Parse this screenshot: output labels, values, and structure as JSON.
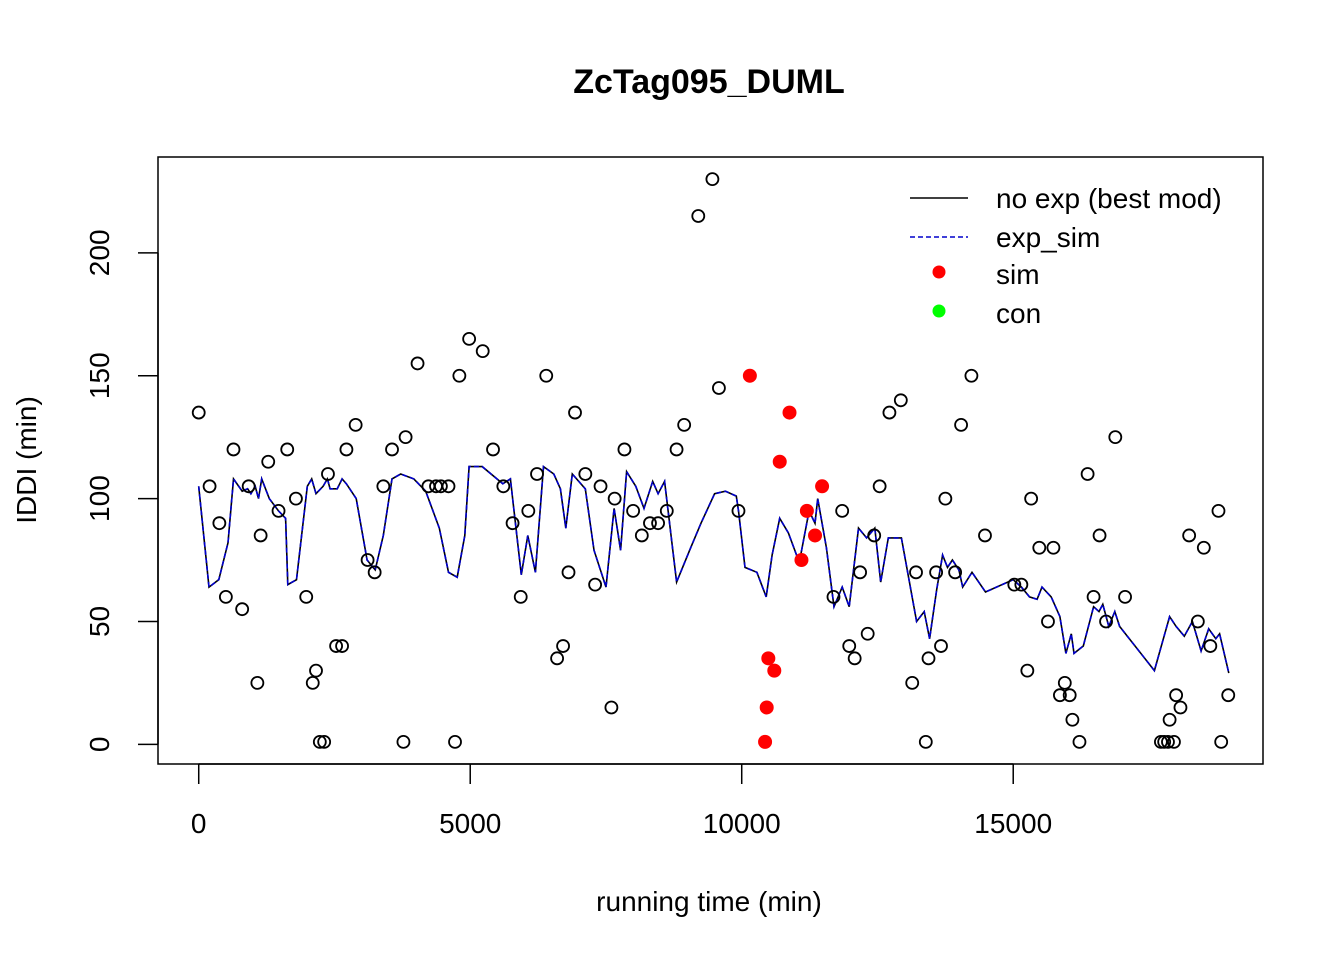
{
  "chart_data": {
    "type": "scatter",
    "title": "ZcTag095_DUML",
    "xlabel": "running time (min)",
    "ylabel": "IDDI (min)",
    "xlim": [
      -750,
      19600
    ],
    "ylim": [
      -8,
      239
    ],
    "x_ticks": [
      0,
      5000,
      10000,
      15000
    ],
    "x_tick_labels": [
      "0",
      "5000",
      "10000",
      "15000"
    ],
    "y_ticks": [
      0,
      50,
      100,
      150,
      200
    ],
    "y_tick_labels": [
      "0",
      "50",
      "100",
      "150",
      "200"
    ],
    "grid": false,
    "legend_position": "top-right",
    "colors": {
      "no_exp_line": "#000000",
      "exp_sim_line": "#0000cc",
      "sim_points": "#ff0000",
      "con_points": "#00ff00",
      "observed_points": "#000000"
    },
    "legend": [
      {
        "label": "no exp (best mod)",
        "style": "solid-line",
        "color": "#000000"
      },
      {
        "label": "exp_sim",
        "style": "dashed-line",
        "color": "#0000cc"
      },
      {
        "label": "sim",
        "style": "filled-point",
        "color": "#ff0000"
      },
      {
        "label": "con",
        "style": "filled-point",
        "color": "#00ff00"
      }
    ],
    "series": [
      {
        "name": "observed",
        "kind": "open-circle",
        "points": [
          [
            0,
            135
          ],
          [
            200,
            105
          ],
          [
            380,
            90
          ],
          [
            500,
            60
          ],
          [
            640,
            120
          ],
          [
            800,
            55
          ],
          [
            920,
            105
          ],
          [
            1080,
            25
          ],
          [
            1140,
            85
          ],
          [
            1280,
            115
          ],
          [
            1470,
            95
          ],
          [
            1630,
            120
          ],
          [
            1790,
            100
          ],
          [
            1980,
            60
          ],
          [
            2100,
            25
          ],
          [
            2160,
            30
          ],
          [
            2230,
            1
          ],
          [
            2310,
            1
          ],
          [
            2380,
            110
          ],
          [
            2530,
            40
          ],
          [
            2640,
            40
          ],
          [
            2720,
            120
          ],
          [
            2890,
            130
          ],
          [
            3110,
            75
          ],
          [
            3240,
            70
          ],
          [
            3400,
            105
          ],
          [
            3560,
            120
          ],
          [
            3770,
            1
          ],
          [
            3810,
            125
          ],
          [
            4030,
            155
          ],
          [
            4230,
            105
          ],
          [
            4370,
            105
          ],
          [
            4460,
            105
          ],
          [
            4600,
            105
          ],
          [
            4720,
            1
          ],
          [
            4800,
            150
          ],
          [
            4980,
            165
          ],
          [
            5230,
            160
          ],
          [
            5420,
            120
          ],
          [
            5610,
            105
          ],
          [
            5780,
            90
          ],
          [
            5930,
            60
          ],
          [
            6070,
            95
          ],
          [
            6230,
            110
          ],
          [
            6400,
            150
          ],
          [
            6600,
            35
          ],
          [
            6710,
            40
          ],
          [
            6810,
            70
          ],
          [
            6930,
            135
          ],
          [
            7120,
            110
          ],
          [
            7300,
            65
          ],
          [
            7400,
            105
          ],
          [
            7600,
            15
          ],
          [
            7660,
            100
          ],
          [
            7840,
            120
          ],
          [
            8000,
            95
          ],
          [
            8160,
            85
          ],
          [
            8310,
            90
          ],
          [
            8460,
            90
          ],
          [
            8620,
            95
          ],
          [
            8800,
            120
          ],
          [
            8940,
            130
          ],
          [
            9200,
            215
          ],
          [
            9460,
            230
          ],
          [
            9580,
            145
          ],
          [
            9940,
            95
          ]
        ]
      },
      {
        "name": "sim",
        "kind": "filled-circle",
        "points": [
          [
            10150,
            150
          ],
          [
            10430,
            1
          ],
          [
            10460,
            15
          ],
          [
            10490,
            35
          ],
          [
            10600,
            30
          ],
          [
            10700,
            115
          ],
          [
            10880,
            135
          ],
          [
            11100,
            75
          ],
          [
            11200,
            95
          ],
          [
            11350,
            85
          ],
          [
            11480,
            105
          ]
        ]
      },
      {
        "name": "observed-late",
        "kind": "open-circle",
        "points": [
          [
            11690,
            60
          ],
          [
            11850,
            95
          ],
          [
            11980,
            40
          ],
          [
            12080,
            35
          ],
          [
            12180,
            70
          ],
          [
            12320,
            45
          ],
          [
            12440,
            85
          ],
          [
            12540,
            105
          ],
          [
            12720,
            135
          ],
          [
            12930,
            140
          ],
          [
            13140,
            25
          ],
          [
            13210,
            70
          ],
          [
            13390,
            1
          ],
          [
            13440,
            35
          ],
          [
            13580,
            70
          ],
          [
            13670,
            40
          ],
          [
            13750,
            100
          ],
          [
            13930,
            70
          ],
          [
            14040,
            130
          ],
          [
            14230,
            150
          ],
          [
            14480,
            85
          ],
          [
            15020,
            65
          ],
          [
            15150,
            65
          ],
          [
            15260,
            30
          ],
          [
            15330,
            100
          ],
          [
            15480,
            80
          ],
          [
            15640,
            50
          ],
          [
            15740,
            80
          ],
          [
            15860,
            20
          ],
          [
            15950,
            25
          ],
          [
            16040,
            20
          ],
          [
            16090,
            10
          ],
          [
            16220,
            1
          ],
          [
            16370,
            110
          ],
          [
            16480,
            60
          ],
          [
            16590,
            85
          ],
          [
            16710,
            50
          ],
          [
            16880,
            125
          ],
          [
            17060,
            60
          ],
          [
            17720,
            1
          ],
          [
            17780,
            1
          ],
          [
            17850,
            1
          ],
          [
            17880,
            10
          ],
          [
            17960,
            1
          ],
          [
            18000,
            20
          ],
          [
            18080,
            15
          ],
          [
            18240,
            85
          ],
          [
            18400,
            50
          ],
          [
            18510,
            80
          ],
          [
            18630,
            40
          ],
          [
            18780,
            95
          ],
          [
            18830,
            1
          ],
          [
            18960,
            20
          ]
        ]
      },
      {
        "name": "no exp (best mod)",
        "kind": "line",
        "points": [
          [
            0,
            105
          ],
          [
            190,
            64
          ],
          [
            370,
            67
          ],
          [
            540,
            82
          ],
          [
            640,
            108
          ],
          [
            800,
            103
          ],
          [
            900,
            104
          ],
          [
            960,
            102
          ],
          [
            1040,
            105
          ],
          [
            1100,
            100
          ],
          [
            1160,
            108
          ],
          [
            1300,
            100
          ],
          [
            1470,
            95
          ],
          [
            1600,
            92
          ],
          [
            1640,
            65
          ],
          [
            1800,
            67
          ],
          [
            2000,
            105
          ],
          [
            2080,
            108
          ],
          [
            2160,
            102
          ],
          [
            2290,
            105
          ],
          [
            2370,
            108
          ],
          [
            2420,
            104
          ],
          [
            2550,
            104
          ],
          [
            2640,
            108
          ],
          [
            2720,
            106
          ],
          [
            2900,
            100
          ],
          [
            3100,
            75
          ],
          [
            3250,
            71
          ],
          [
            3400,
            85
          ],
          [
            3560,
            108
          ],
          [
            3720,
            110
          ],
          [
            3960,
            108
          ],
          [
            4180,
            103
          ],
          [
            4430,
            88
          ],
          [
            4600,
            70
          ],
          [
            4760,
            68
          ],
          [
            4900,
            85
          ],
          [
            4980,
            113
          ],
          [
            5220,
            113
          ],
          [
            5600,
            106
          ],
          [
            5740,
            108
          ],
          [
            5940,
            69
          ],
          [
            6060,
            85
          ],
          [
            6200,
            70
          ],
          [
            6350,
            113
          ],
          [
            6540,
            110
          ],
          [
            6660,
            104
          ],
          [
            6760,
            88
          ],
          [
            6880,
            110
          ],
          [
            7120,
            104
          ],
          [
            7280,
            79
          ],
          [
            7500,
            64
          ],
          [
            7650,
            96
          ],
          [
            7770,
            79
          ],
          [
            7880,
            111
          ],
          [
            8050,
            105
          ],
          [
            8200,
            96
          ],
          [
            8360,
            107
          ],
          [
            8460,
            102
          ],
          [
            8580,
            107
          ],
          [
            8800,
            66
          ],
          [
            9060,
            80
          ],
          [
            9250,
            90
          ],
          [
            9500,
            102
          ],
          [
            9700,
            103
          ],
          [
            9900,
            101
          ],
          [
            9940,
            95
          ],
          [
            10060,
            72
          ],
          [
            10280,
            70
          ],
          [
            10450,
            60
          ],
          [
            10560,
            77
          ],
          [
            10700,
            92
          ],
          [
            10860,
            86
          ],
          [
            11060,
            74
          ],
          [
            11240,
            95
          ],
          [
            11350,
            90
          ],
          [
            11400,
            100
          ],
          [
            11560,
            80
          ],
          [
            11700,
            56
          ],
          [
            11850,
            64
          ],
          [
            11980,
            56
          ],
          [
            12150,
            88
          ],
          [
            12300,
            84
          ],
          [
            12450,
            88
          ],
          [
            12560,
            66
          ],
          [
            12700,
            84
          ],
          [
            12940,
            84
          ],
          [
            13220,
            50
          ],
          [
            13360,
            54
          ],
          [
            13460,
            43
          ],
          [
            13590,
            63
          ],
          [
            13700,
            77
          ],
          [
            13790,
            72
          ],
          [
            13880,
            75
          ],
          [
            14000,
            71
          ],
          [
            14070,
            64
          ],
          [
            14240,
            70
          ],
          [
            14490,
            62
          ],
          [
            15000,
            67
          ],
          [
            15150,
            64
          ],
          [
            15300,
            60
          ],
          [
            15440,
            59
          ],
          [
            15530,
            64
          ],
          [
            15700,
            60
          ],
          [
            15860,
            52
          ],
          [
            15970,
            37
          ],
          [
            16070,
            45
          ],
          [
            16120,
            37
          ],
          [
            16290,
            40
          ],
          [
            16480,
            56
          ],
          [
            16580,
            54
          ],
          [
            16650,
            57
          ],
          [
            16760,
            48
          ],
          [
            16870,
            54
          ],
          [
            16960,
            48
          ],
          [
            17600,
            30
          ],
          [
            17880,
            52
          ],
          [
            18000,
            48
          ],
          [
            18150,
            44
          ],
          [
            18300,
            50
          ],
          [
            18460,
            38
          ],
          [
            18600,
            47
          ],
          [
            18730,
            43
          ],
          [
            18800,
            45
          ],
          [
            18970,
            29
          ]
        ]
      }
    ]
  }
}
